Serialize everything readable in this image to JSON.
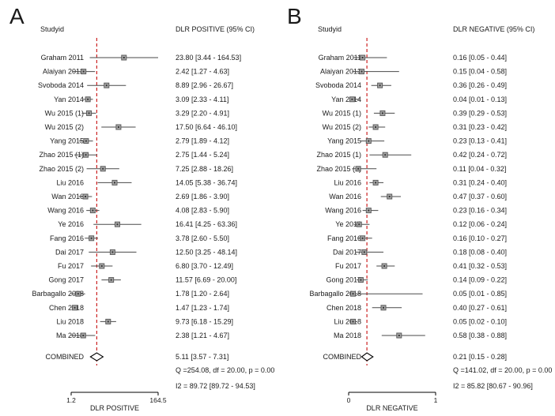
{
  "figure": {
    "background": "#ffffff",
    "colors": {
      "reference_line": "#cc2222",
      "ci_line": "#4a4a4a",
      "marker_fill": "#a8a8a8",
      "marker_stroke": "#5a5a5a",
      "marker_dot": "#333333",
      "diamond_fill": "#ffffff",
      "diamond_stroke": "#000000",
      "axis": "#000000",
      "text": "#1a1a1a"
    }
  },
  "chart_data": [
    {
      "type": "forest",
      "panel_label": "A",
      "column_headers": {
        "study": "Studyid",
        "effect": "DLR POSITIVE (95% CI)"
      },
      "scale": "log",
      "xlim": [
        1.2,
        164.5
      ],
      "x_ticks": [
        1.2,
        164.5
      ],
      "x_tick_labels": [
        "1.2",
        "164.5"
      ],
      "xlabel": "DLR POSITIVE",
      "ref_line": 5.11,
      "studies": [
        {
          "label": "Graham 2011",
          "est": 23.8,
          "lo": 3.44,
          "hi": 164.53,
          "text": "23.80 [3.44 - 164.53]"
        },
        {
          "label": "Alaiyan 2013",
          "est": 2.42,
          "lo": 1.27,
          "hi": 4.63,
          "text": "2.42 [1.27 - 4.63]"
        },
        {
          "label": "Svoboda 2014",
          "est": 8.89,
          "lo": 2.96,
          "hi": 26.67,
          "text": "8.89 [2.96 - 26.67]"
        },
        {
          "label": "Yan 2014",
          "est": 3.09,
          "lo": 2.33,
          "hi": 4.11,
          "text": "3.09 [2.33 - 4.11]"
        },
        {
          "label": "Wu 2015 (1)",
          "est": 3.29,
          "lo": 2.2,
          "hi": 4.91,
          "text": "3.29 [2.20 - 4.91]"
        },
        {
          "label": "Wu 2015 (2)",
          "est": 17.5,
          "lo": 6.64,
          "hi": 46.1,
          "text": "17.50 [6.64 - 46.10]"
        },
        {
          "label": "Yang 2015",
          "est": 2.79,
          "lo": 1.89,
          "hi": 4.12,
          "text": "2.79 [1.89 - 4.12]"
        },
        {
          "label": "Zhao 2015 (1)",
          "est": 2.75,
          "lo": 1.44,
          "hi": 5.24,
          "text": "2.75 [1.44 - 5.24]"
        },
        {
          "label": "Zhao 2015 (2)",
          "est": 7.25,
          "lo": 2.88,
          "hi": 18.26,
          "text": "7.25 [2.88 - 18.26]"
        },
        {
          "label": "Liu 2016",
          "est": 14.05,
          "lo": 5.38,
          "hi": 36.74,
          "text": "14.05 [5.38 - 36.74]"
        },
        {
          "label": "Wan 2016",
          "est": 2.69,
          "lo": 1.86,
          "hi": 3.9,
          "text": "2.69 [1.86 - 3.90]"
        },
        {
          "label": "Wang 2016",
          "est": 4.08,
          "lo": 2.83,
          "hi": 5.9,
          "text": "4.08 [2.83 - 5.90]"
        },
        {
          "label": "Ye 2016",
          "est": 16.41,
          "lo": 4.25,
          "hi": 63.36,
          "text": "16.41 [4.25 - 63.36]"
        },
        {
          "label": "Fang 2016",
          "est": 3.78,
          "lo": 2.6,
          "hi": 5.5,
          "text": "3.78 [2.60 - 5.50]"
        },
        {
          "label": "Dai 2017",
          "est": 12.5,
          "lo": 3.25,
          "hi": 48.14,
          "text": "12.50 [3.25 - 48.14]"
        },
        {
          "label": "Fu 2017",
          "est": 6.8,
          "lo": 3.7,
          "hi": 12.49,
          "text": "6.80 [3.70 - 12.49]"
        },
        {
          "label": "Gong 2017",
          "est": 11.57,
          "lo": 6.69,
          "hi": 20.0,
          "text": "11.57 [6.69 - 20.00]"
        },
        {
          "label": "Barbagallo 2018",
          "est": 1.78,
          "lo": 1.2,
          "hi": 2.64,
          "text": "1.78 [1.20 - 2.64]"
        },
        {
          "label": "Chen 2018",
          "est": 1.47,
          "lo": 1.23,
          "hi": 1.74,
          "text": "1.47 [1.23 - 1.74]"
        },
        {
          "label": "Liu 2018",
          "est": 9.73,
          "lo": 6.18,
          "hi": 15.29,
          "text": "9.73 [6.18 - 15.29]"
        },
        {
          "label": "Ma 2018",
          "est": 2.38,
          "lo": 1.21,
          "hi": 4.67,
          "text": "2.38 [1.21 - 4.67]"
        }
      ],
      "combined": {
        "label": "COMBINED",
        "est": 5.11,
        "lo": 3.57,
        "hi": 7.31,
        "text": "5.11 [3.57 - 7.31]"
      },
      "heterogeneity": [
        "Q =254.08, df = 20.00, p =  0.00",
        "I2 = 89.72 [89.72 - 94.53]"
      ]
    },
    {
      "type": "forest",
      "panel_label": "B",
      "column_headers": {
        "study": "Studyid",
        "effect": "DLR NEGATIVE (95% CI)"
      },
      "scale": "linear",
      "xlim": [
        0,
        1
      ],
      "x_ticks": [
        0,
        1
      ],
      "x_tick_labels": [
        "0",
        "1"
      ],
      "xlabel": "DLR NEGATIVE",
      "ref_line": 0.21,
      "studies": [
        {
          "label": "Graham 2011",
          "est": 0.16,
          "lo": 0.05,
          "hi": 0.44,
          "text": "0.16 [0.05 - 0.44]"
        },
        {
          "label": "Alaiyan 2013",
          "est": 0.15,
          "lo": 0.04,
          "hi": 0.58,
          "text": "0.15 [0.04 - 0.58]"
        },
        {
          "label": "Svoboda 2014",
          "est": 0.36,
          "lo": 0.26,
          "hi": 0.49,
          "text": "0.36 [0.26 - 0.49]"
        },
        {
          "label": "Yan 2014",
          "est": 0.04,
          "lo": 0.01,
          "hi": 0.13,
          "text": "0.04 [0.01 - 0.13]"
        },
        {
          "label": "Wu 2015 (1)",
          "est": 0.39,
          "lo": 0.29,
          "hi": 0.53,
          "text": "0.39 [0.29 - 0.53]"
        },
        {
          "label": "Wu 2015 (2)",
          "est": 0.31,
          "lo": 0.23,
          "hi": 0.42,
          "text": "0.31 [0.23 - 0.42]"
        },
        {
          "label": "Yang 2015",
          "est": 0.23,
          "lo": 0.13,
          "hi": 0.41,
          "text": "0.23 [0.13 - 0.41]"
        },
        {
          "label": "Zhao 2015 (1)",
          "est": 0.42,
          "lo": 0.24,
          "hi": 0.72,
          "text": "0.42 [0.24 - 0.72]"
        },
        {
          "label": "Zhao 2015 (2)",
          "est": 0.11,
          "lo": 0.04,
          "hi": 0.32,
          "text": "0.11 [0.04 - 0.32]"
        },
        {
          "label": "Liu 2016",
          "est": 0.31,
          "lo": 0.24,
          "hi": 0.4,
          "text": "0.31 [0.24 - 0.40]"
        },
        {
          "label": "Wan 2016",
          "est": 0.47,
          "lo": 0.37,
          "hi": 0.6,
          "text": "0.47 [0.37 - 0.60]"
        },
        {
          "label": "Wang 2016",
          "est": 0.23,
          "lo": 0.16,
          "hi": 0.34,
          "text": "0.23 [0.16 - 0.34]"
        },
        {
          "label": "Ye 2016",
          "est": 0.12,
          "lo": 0.06,
          "hi": 0.24,
          "text": "0.12 [0.06 - 0.24]"
        },
        {
          "label": "Fang 2016",
          "est": 0.16,
          "lo": 0.1,
          "hi": 0.27,
          "text": "0.16 [0.10 - 0.27]"
        },
        {
          "label": "Dai 2017",
          "est": 0.18,
          "lo": 0.08,
          "hi": 0.4,
          "text": "0.18 [0.08 - 0.40]"
        },
        {
          "label": "Fu 2017",
          "est": 0.41,
          "lo": 0.32,
          "hi": 0.53,
          "text": "0.41 [0.32 - 0.53]"
        },
        {
          "label": "Gong 2017",
          "est": 0.14,
          "lo": 0.09,
          "hi": 0.22,
          "text": "0.14 [0.09 - 0.22]"
        },
        {
          "label": "Barbagallo 2018",
          "est": 0.05,
          "lo": 0.01,
          "hi": 0.85,
          "text": "0.05 [0.01 - 0.85]"
        },
        {
          "label": "Chen 2018",
          "est": 0.4,
          "lo": 0.27,
          "hi": 0.61,
          "text": "0.40 [0.27 - 0.61]"
        },
        {
          "label": "Liu 2018",
          "est": 0.05,
          "lo": 0.02,
          "hi": 0.1,
          "text": "0.05 [0.02 - 0.10]"
        },
        {
          "label": "Ma 2018",
          "est": 0.58,
          "lo": 0.38,
          "hi": 0.88,
          "text": "0.58 [0.38 - 0.88]"
        }
      ],
      "combined": {
        "label": "COMBINED",
        "est": 0.21,
        "lo": 0.15,
        "hi": 0.28,
        "text": "0.21 [0.15 - 0.28]"
      },
      "heterogeneity": [
        "Q =141.02, df = 20.00, p =  0.00",
        "I2 = 85.82 [80.67 - 90.96]"
      ]
    }
  ]
}
